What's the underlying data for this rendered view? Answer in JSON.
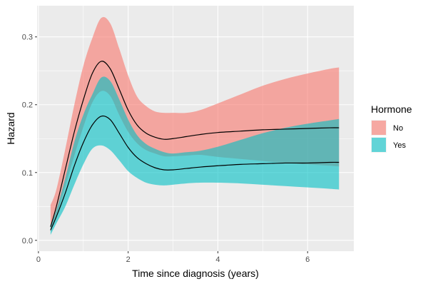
{
  "chart_data": {
    "type": "area",
    "xlabel": "Time since diagnosis (years)",
    "ylabel": "Hazard",
    "xlim": [
      -0.03,
      7.03
    ],
    "ylim": [
      -0.016,
      0.346
    ],
    "x_ticks": [
      0,
      2,
      4,
      6
    ],
    "x_tick_labels": [
      "0",
      "2",
      "4",
      "6"
    ],
    "y_ticks": [
      0.0,
      0.1,
      0.2,
      0.3
    ],
    "y_tick_labels": [
      "0.0",
      "0.1",
      "0.2",
      "0.3"
    ],
    "grid": true,
    "legend": {
      "title": "Hormone",
      "position": "right"
    },
    "x": [
      0.27,
      0.4,
      0.6,
      0.8,
      1.0,
      1.2,
      1.4,
      1.6,
      1.8,
      2.0,
      2.2,
      2.4,
      2.6,
      2.8,
      3.0,
      3.3,
      3.6,
      4.0,
      4.5,
      5.0,
      5.5,
      6.0,
      6.5,
      6.7
    ],
    "series": [
      {
        "name": "No",
        "color": "#F8766D",
        "fill_opacity": 0.6,
        "values": [
          0.02,
          0.05,
          0.105,
          0.16,
          0.207,
          0.246,
          0.264,
          0.253,
          0.223,
          0.192,
          0.17,
          0.158,
          0.152,
          0.149,
          0.15,
          0.153,
          0.156,
          0.159,
          0.161,
          0.163,
          0.164,
          0.165,
          0.166,
          0.166
        ],
        "lower": [
          0.013,
          0.035,
          0.08,
          0.125,
          0.167,
          0.203,
          0.22,
          0.213,
          0.185,
          0.16,
          0.143,
          0.133,
          0.128,
          0.124,
          0.124,
          0.125,
          0.126,
          0.123,
          0.12,
          0.117,
          0.114,
          0.112,
          0.11,
          0.109
        ],
        "upper": [
          0.052,
          0.075,
          0.135,
          0.2,
          0.257,
          0.298,
          0.328,
          0.32,
          0.283,
          0.243,
          0.212,
          0.198,
          0.19,
          0.188,
          0.188,
          0.188,
          0.192,
          0.202,
          0.215,
          0.228,
          0.238,
          0.246,
          0.253,
          0.255
        ]
      },
      {
        "name": "Yes",
        "color": "#00BFC4",
        "fill_opacity": 0.6,
        "values": [
          0.015,
          0.035,
          0.07,
          0.11,
          0.144,
          0.17,
          0.183,
          0.178,
          0.158,
          0.137,
          0.122,
          0.113,
          0.107,
          0.104,
          0.104,
          0.106,
          0.108,
          0.11,
          0.112,
          0.113,
          0.114,
          0.114,
          0.115,
          0.115
        ],
        "lower": [
          0.008,
          0.025,
          0.05,
          0.082,
          0.112,
          0.135,
          0.14,
          0.133,
          0.118,
          0.102,
          0.092,
          0.085,
          0.082,
          0.081,
          0.082,
          0.084,
          0.085,
          0.085,
          0.084,
          0.082,
          0.08,
          0.078,
          0.076,
          0.075
        ],
        "upper": [
          0.022,
          0.045,
          0.092,
          0.145,
          0.185,
          0.215,
          0.24,
          0.235,
          0.208,
          0.178,
          0.155,
          0.142,
          0.135,
          0.13,
          0.128,
          0.13,
          0.132,
          0.138,
          0.148,
          0.158,
          0.166,
          0.172,
          0.177,
          0.179
        ]
      }
    ]
  }
}
